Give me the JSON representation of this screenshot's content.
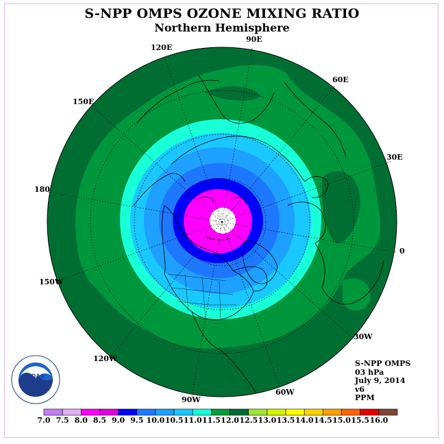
{
  "title": "S-NPP OMPS OZONE MIXING RATIO",
  "subtitle": "Northern Hemisphere",
  "info": {
    "instrument": "S-NPP OMPS",
    "level": "03 hPa",
    "date": "July 9, 2014",
    "version": "v6",
    "unit": "PPM"
  },
  "longitude_labels": [
    "90E",
    "60E",
    "30E",
    "0",
    "30W",
    "60W",
    "90W",
    "120W",
    "150W",
    "180",
    "150E",
    "120E"
  ],
  "colorbar": {
    "ticks": [
      "7.0",
      "7.5",
      "8.0",
      "8.5",
      "9.0",
      "9.5",
      "10.0",
      "10.5",
      "11.0",
      "11.5",
      "12.0",
      "12.5",
      "13.0",
      "13.5",
      "14.0",
      "14.5",
      "15.0",
      "15.5",
      "16.0"
    ],
    "colors": [
      "#c080f0",
      "#e0b0f0",
      "#ff00ff",
      "#e000e0",
      "#0000ff",
      "#1e78ff",
      "#1ea0ff",
      "#19c8ff",
      "#19ffd8",
      "#009f3c",
      "#006e32",
      "#a0e632",
      "#d2f500",
      "#ffff00",
      "#ffd200",
      "#ffa000",
      "#ff6400",
      "#e60000",
      "#7d4832"
    ]
  },
  "map_colors": {
    "ocean_12": "#006e32",
    "band_11_5": "#00963c",
    "band_11": "#19ffd8",
    "band_10_5": "#19c8ff",
    "band_10": "#1ea0ff",
    "band_9_5": "#1e78ff",
    "band_9": "#0000ff",
    "band_8_5": "#ff00ff",
    "pole_missing": "#ffffff"
  },
  "logo": {
    "text": "NOAA",
    "ring_text": "NATIONAL OCEANIC AND ATMOSPHERIC ADMINISTRATION · U.S. DEPARTMENT OF COMMERCE"
  }
}
